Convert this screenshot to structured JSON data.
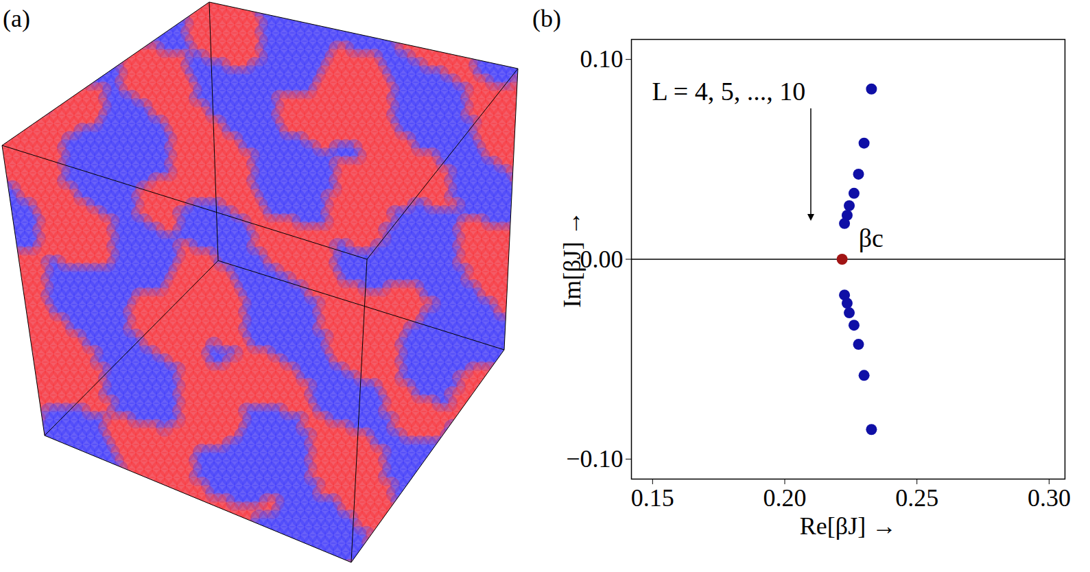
{
  "panel_a": {
    "label": "(a)"
  },
  "chart_data": {
    "type": "scatter",
    "panel_label": "(b)",
    "x_label": "Re[βJ]",
    "y_label": "Im[βJ]",
    "xlim": [
      0.142,
      0.306
    ],
    "ylim": [
      -0.11,
      0.11
    ],
    "xticks": [
      0.15,
      0.2,
      0.25,
      0.3
    ],
    "yticks": [
      -0.1,
      0,
      0.1
    ],
    "hline": 0,
    "marker": "circle",
    "points": {
      "label": "L = 4, 5, ..., 10",
      "color": "#0f0fa6",
      "x": [
        0.2328,
        0.23,
        0.2279,
        0.2262,
        0.2244,
        0.2236,
        0.2226,
        0.2226,
        0.2236,
        0.2244,
        0.2262,
        0.2279,
        0.23,
        0.2328
      ],
      "y": [
        0.0852,
        0.0581,
        0.0426,
        0.033,
        0.0268,
        0.022,
        0.0179,
        -0.0179,
        -0.022,
        -0.0268,
        -0.033,
        -0.0426,
        -0.0581,
        -0.0852
      ]
    },
    "critical_point": {
      "label": "βc",
      "color": "#a11414",
      "x": 0.2217,
      "y": 0
    }
  }
}
